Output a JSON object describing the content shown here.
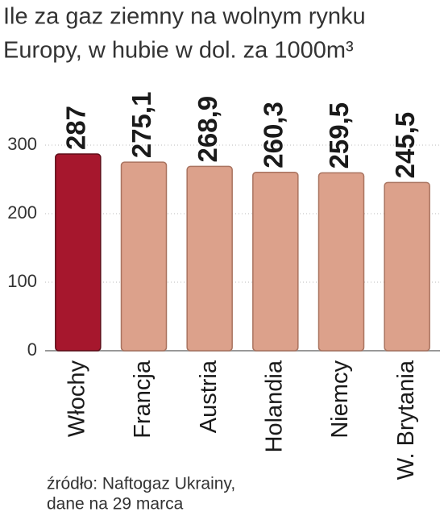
{
  "chart_data": {
    "type": "bar",
    "title": [
      "Ile za gaz ziemny na wolnym rynku",
      "Europy, w hubie w dol. za 1000m³"
    ],
    "categories": [
      "Włochy",
      "Francja",
      "Austria",
      "Holandia",
      "Niemcy",
      "W. Brytania"
    ],
    "values": [
      287,
      275.1,
      268.9,
      260.3,
      259.5,
      245.5
    ],
    "value_labels": [
      "287",
      "275,1",
      "268,9",
      "260,3",
      "259,5",
      "245,5"
    ],
    "colors": [
      "#a6172d",
      "#dca18b",
      "#dca18b",
      "#dca18b",
      "#dca18b",
      "#dca18b"
    ],
    "ylim": [
      0,
      300
    ],
    "yticks": [
      0,
      100,
      200,
      300
    ],
    "grid": true,
    "source": [
      "źródło: Naftogaz Ukrainy,",
      "dane na 29 marca"
    ]
  }
}
